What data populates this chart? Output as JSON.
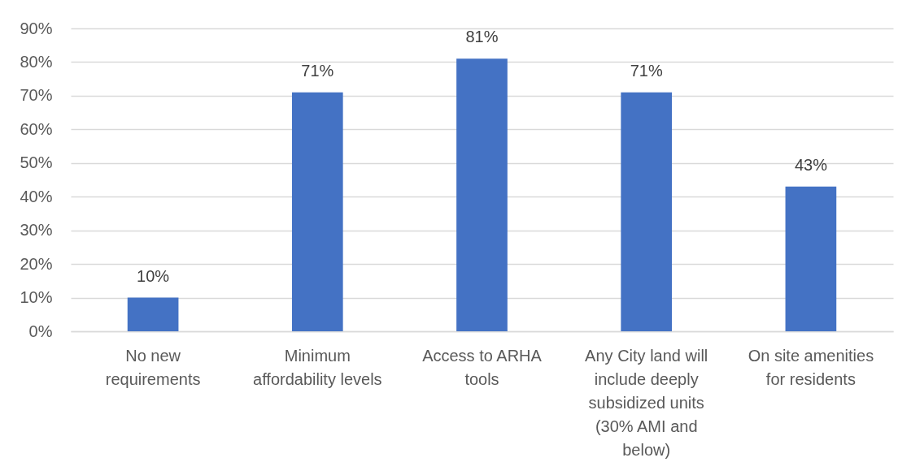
{
  "chart_data": {
    "type": "bar",
    "categories": [
      "No new requirements",
      "Minimum affordability levels",
      "Access to ARHA tools",
      "Any City land will include deeply subsidized units (30% AMI and below)",
      "On site amenities for residents"
    ],
    "values": [
      10,
      71,
      81,
      71,
      43
    ],
    "value_labels": [
      "10%",
      "71%",
      "81%",
      "71%",
      "43%"
    ],
    "color": "#4472c4",
    "ylim": [
      0,
      90
    ],
    "yticks": [
      {
        "value": 0,
        "label": "0%"
      },
      {
        "value": 10,
        "label": "10%"
      },
      {
        "value": 20,
        "label": "20%"
      },
      {
        "value": 30,
        "label": "30%"
      },
      {
        "value": 40,
        "label": "40%"
      },
      {
        "value": 50,
        "label": "50%"
      },
      {
        "value": 60,
        "label": "60%"
      },
      {
        "value": 70,
        "label": "70%"
      },
      {
        "value": 80,
        "label": "80%"
      },
      {
        "value": 90,
        "label": "90%"
      }
    ],
    "grid": "y"
  }
}
